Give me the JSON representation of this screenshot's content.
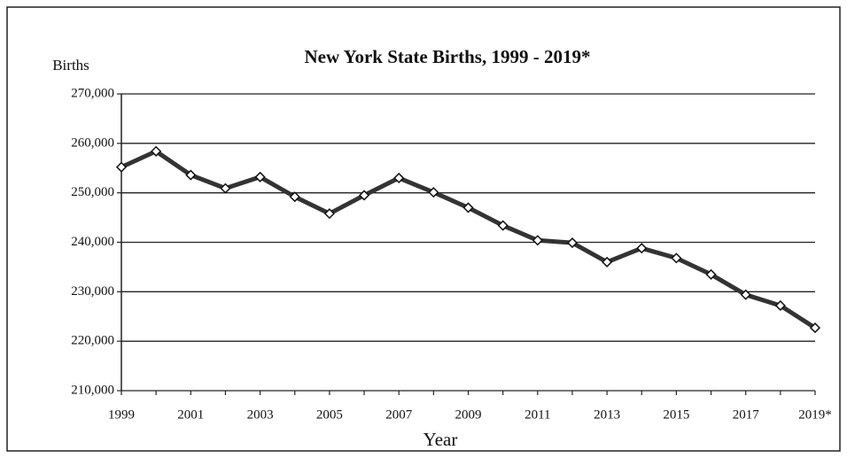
{
  "chart_data": {
    "type": "line",
    "title": "New York State Births, 1999 - 2019*",
    "y_label": "Births",
    "x_label": "Year",
    "categories": [
      "1999",
      null,
      "2001",
      null,
      "2003",
      null,
      "2005",
      null,
      "2007",
      null,
      "2009",
      null,
      "2011",
      null,
      "2013",
      null,
      "2015",
      null,
      "2017",
      null,
      "2019*"
    ],
    "values": [
      255200,
      258400,
      253600,
      250900,
      253200,
      249200,
      245800,
      249500,
      253000,
      250100,
      247000,
      243400,
      240400,
      239900,
      236000,
      238800,
      236800,
      233500,
      229400,
      227200,
      222700
    ],
    "color": "#333333",
    "ylim": [
      210000,
      270000
    ],
    "yticks": [
      {
        "value": 210000,
        "label": "210,000"
      },
      {
        "value": 220000,
        "label": "220,000"
      },
      {
        "value": 230000,
        "label": "230,000"
      },
      {
        "value": 240000,
        "label": "240,000"
      },
      {
        "value": 250000,
        "label": "250,000"
      },
      {
        "value": 260000,
        "label": "260,000"
      },
      {
        "value": 270000,
        "label": "270,000"
      }
    ],
    "grid": true
  }
}
